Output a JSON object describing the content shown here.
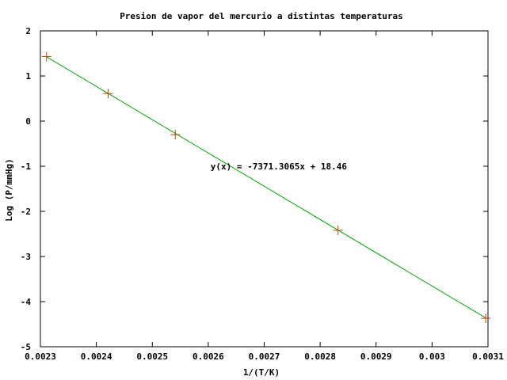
{
  "chart_data": {
    "type": "scatter",
    "title": "Presion de vapor del mercurio a distintas temperaturas",
    "xlabel": "1/(T/K)",
    "ylabel": "Log (P/mmHg)",
    "xlim": [
      0.0023,
      0.0031
    ],
    "ylim": [
      -5,
      2
    ],
    "x_ticks": [
      "0.0023",
      "0.0024",
      "0.0025",
      "0.0026",
      "0.0027",
      "0.0028",
      "0.0029",
      "0.003",
      "0.0031"
    ],
    "y_ticks": [
      "-5",
      "-4",
      "-3",
      "-2",
      "-1",
      "0",
      "1",
      "2"
    ],
    "grid": false,
    "points": [
      {
        "x": 0.002311,
        "y": 1.43
      },
      {
        "x": 0.002421,
        "y": 0.61
      },
      {
        "x": 0.002541,
        "y": -0.3
      },
      {
        "x": 0.002832,
        "y": -2.42
      },
      {
        "x": 0.003096,
        "y": -4.37
      }
    ],
    "point_color": "#c04000",
    "fit": {
      "slope": -7371.3065,
      "intercept": 18.46,
      "color": "#00aa00",
      "label": "y(x) = -7371.3065x + 18.46",
      "label_at": {
        "x": 0.002726,
        "y": -1.0
      }
    }
  }
}
